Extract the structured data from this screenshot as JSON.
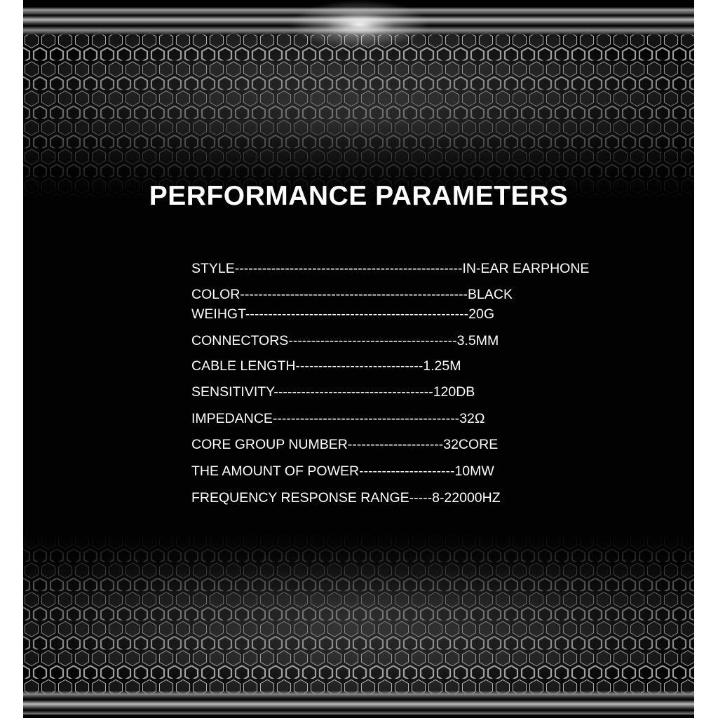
{
  "title": "PERFORMANCE PARAMETERS",
  "specs": [
    {
      "label": "STYLE",
      "leader": "--------------------------------------------------",
      "value": "IN-EAR EARPHONE"
    },
    {
      "label": "COLOR",
      "leader": "--------------------------------------------------",
      "value": "BLACK"
    },
    {
      "label": "WEIHGT",
      "leader": "-------------------------------------------------",
      "value": "20G"
    },
    {
      "label": "CONNECTORS",
      "leader": "-------------------------------------",
      "value": "3.5MM"
    },
    {
      "label": "CABLE LENGTH",
      "leader": "----------------------------",
      "value": "1.25M"
    },
    {
      "label": "SENSITIVITY",
      "leader": "-----------------------------------",
      "value": "120DB"
    },
    {
      "label": "IMPEDANCE",
      "leader": "-----------------------------------------",
      "value": "32Ω"
    },
    {
      "label": "CORE GROUP NUMBER",
      "leader": "---------------------",
      "value": "32CORE"
    },
    {
      "label": "THE AMOUNT OF POWER",
      "leader": "---------------------",
      "value": "10MW"
    },
    {
      "label": "FREQUENCY RESPONSE RANGE",
      "leader": "-----",
      "value": "8-22000HZ"
    }
  ],
  "colors": {
    "background": "#020202",
    "text": "#ffffff"
  }
}
